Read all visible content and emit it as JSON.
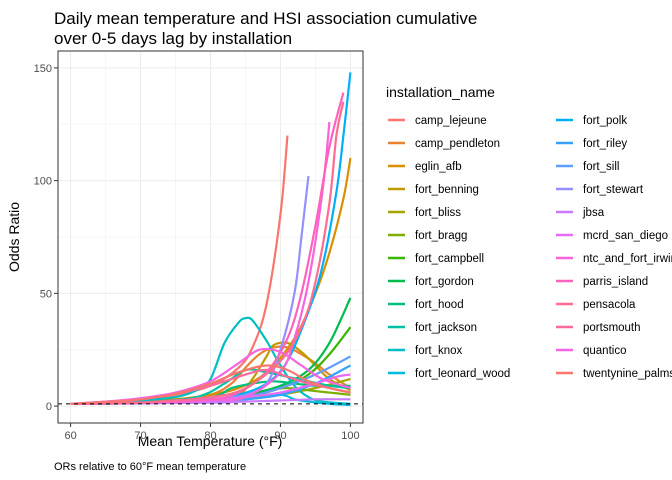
{
  "chart_data": {
    "type": "line",
    "title": "Daily mean temperature and HSI association cumulative",
    "subtitle": "over 0-5 days lag by installation",
    "xlabel": "Mean Temperature (°F)",
    "ylabel": "Odds Ratio",
    "caption": "ORs relative to 60°F mean temperature",
    "xlim": [
      58.2,
      101.8
    ],
    "ylim": [
      -7.5,
      157.5
    ],
    "x_ticks": [
      60,
      70,
      80,
      90,
      100
    ],
    "y_ticks": [
      0,
      50,
      100,
      150
    ],
    "reference_line": {
      "y": 1,
      "style": "dashed"
    },
    "grid": true,
    "legend_title": "installation_name",
    "legend_position": "right",
    "series": [
      {
        "name": "camp_lejeune",
        "color": "#F8766D",
        "points": [
          [
            60,
            1
          ],
          [
            65,
            1.6
          ],
          [
            70,
            2.8
          ],
          [
            75,
            5
          ],
          [
            80,
            9
          ],
          [
            84,
            17
          ],
          [
            86,
            26
          ],
          [
            88,
            45
          ],
          [
            90,
            85
          ],
          [
            91,
            120
          ]
        ]
      },
      {
        "name": "camp_pendleton",
        "color": "#EA8331",
        "points": [
          [
            60,
            1
          ],
          [
            65,
            1.3
          ],
          [
            70,
            1.8
          ],
          [
            75,
            2.8
          ],
          [
            80,
            5
          ],
          [
            83,
            10
          ],
          [
            85,
            17
          ],
          [
            87,
            23
          ],
          [
            89,
            26
          ],
          [
            91,
            26
          ],
          [
            93,
            23
          ],
          [
            95,
            19
          ],
          [
            97,
            14
          ],
          [
            100,
            8
          ]
        ]
      },
      {
        "name": "eglin_afb",
        "color": "#D89000",
        "points": [
          [
            60,
            1
          ],
          [
            65,
            1.4
          ],
          [
            70,
            2
          ],
          [
            75,
            3
          ],
          [
            80,
            5
          ],
          [
            84,
            8
          ],
          [
            88,
            15
          ],
          [
            92,
            30
          ],
          [
            95,
            50
          ],
          [
            97,
            68
          ],
          [
            99,
            92
          ],
          [
            100,
            110
          ]
        ]
      },
      {
        "name": "fort_benning",
        "color": "#C09B00",
        "points": [
          [
            60,
            1
          ],
          [
            70,
            1.5
          ],
          [
            80,
            3
          ],
          [
            84,
            5
          ],
          [
            86,
            12
          ],
          [
            88,
            22
          ],
          [
            89,
            27
          ],
          [
            91,
            28
          ],
          [
            93,
            24
          ],
          [
            95,
            18
          ],
          [
            97,
            12
          ],
          [
            100,
            7
          ]
        ]
      },
      {
        "name": "fort_bliss",
        "color": "#A3A500",
        "points": [
          [
            60,
            1
          ],
          [
            70,
            1.3
          ],
          [
            80,
            2
          ],
          [
            85,
            3
          ],
          [
            90,
            5
          ],
          [
            95,
            8
          ],
          [
            100,
            12
          ]
        ]
      },
      {
        "name": "fort_bragg",
        "color": "#7CAE00",
        "points": [
          [
            60,
            1
          ],
          [
            70,
            1.5
          ],
          [
            80,
            3
          ],
          [
            85,
            5
          ],
          [
            88,
            7
          ],
          [
            91,
            8
          ],
          [
            94,
            7
          ],
          [
            97,
            6
          ],
          [
            100,
            5
          ]
        ]
      },
      {
        "name": "fort_campbell",
        "color": "#39B600",
        "points": [
          [
            60,
            1
          ],
          [
            70,
            1.5
          ],
          [
            80,
            2.5
          ],
          [
            85,
            4
          ],
          [
            90,
            8
          ],
          [
            94,
            14
          ],
          [
            97,
            23
          ],
          [
            100,
            35
          ]
        ]
      },
      {
        "name": "fort_gordon",
        "color": "#00BB4E",
        "points": [
          [
            60,
            1
          ],
          [
            70,
            1.5
          ],
          [
            80,
            3
          ],
          [
            85,
            5
          ],
          [
            90,
            9
          ],
          [
            94,
            16
          ],
          [
            97,
            28
          ],
          [
            100,
            48
          ]
        ]
      },
      {
        "name": "fort_hood",
        "color": "#00BF7D",
        "points": [
          [
            60,
            1
          ],
          [
            70,
            1.6
          ],
          [
            80,
            4
          ],
          [
            83,
            8
          ],
          [
            86,
            10
          ],
          [
            89,
            11
          ],
          [
            92,
            10
          ],
          [
            95,
            9
          ],
          [
            98,
            9
          ],
          [
            100,
            9
          ]
        ]
      },
      {
        "name": "fort_jackson",
        "color": "#00C1A3",
        "points": [
          [
            60,
            1
          ],
          [
            70,
            1.5
          ],
          [
            78,
            4
          ],
          [
            82,
            10
          ],
          [
            85,
            16
          ],
          [
            88,
            15
          ],
          [
            91,
            13
          ],
          [
            94,
            11
          ],
          [
            97,
            9
          ],
          [
            100,
            8
          ]
        ]
      },
      {
        "name": "fort_knox",
        "color": "#00BFC4",
        "points": [
          [
            60,
            1
          ],
          [
            65,
            1.5
          ],
          [
            70,
            2.5
          ],
          [
            75,
            4
          ],
          [
            78,
            7
          ],
          [
            80,
            12
          ],
          [
            82,
            28
          ],
          [
            84,
            37
          ],
          [
            85,
            39
          ],
          [
            86,
            38
          ],
          [
            88,
            29
          ],
          [
            90,
            18
          ],
          [
            92,
            9
          ],
          [
            94,
            4
          ],
          [
            96,
            2
          ],
          [
            100,
            1
          ]
        ]
      },
      {
        "name": "fort_leonard_wood",
        "color": "#00BAE0",
        "points": [
          [
            60,
            1
          ],
          [
            70,
            1.4
          ],
          [
            80,
            2.5
          ],
          [
            85,
            4
          ],
          [
            90,
            5
          ],
          [
            92,
            3
          ],
          [
            94,
            2
          ],
          [
            97,
            1
          ],
          [
            100,
            0.5
          ]
        ]
      },
      {
        "name": "fort_polk",
        "color": "#00B0F6",
        "points": [
          [
            60,
            1
          ],
          [
            70,
            1.5
          ],
          [
            80,
            3
          ],
          [
            84,
            5
          ],
          [
            88,
            10
          ],
          [
            91,
            20
          ],
          [
            94,
            42
          ],
          [
            96,
            62
          ],
          [
            98,
            95
          ],
          [
            99,
            120
          ],
          [
            100,
            148
          ]
        ]
      },
      {
        "name": "fort_riley",
        "color": "#35A2FF",
        "points": [
          [
            60,
            1
          ],
          [
            70,
            1.3
          ],
          [
            80,
            2
          ],
          [
            85,
            3
          ],
          [
            90,
            5
          ],
          [
            95,
            10
          ],
          [
            100,
            18
          ]
        ]
      },
      {
        "name": "fort_sill",
        "color": "#619CFF",
        "points": [
          [
            60,
            1
          ],
          [
            70,
            1.4
          ],
          [
            80,
            2.5
          ],
          [
            85,
            4
          ],
          [
            90,
            8
          ],
          [
            95,
            14
          ],
          [
            100,
            22
          ]
        ]
      },
      {
        "name": "fort_stewart",
        "color": "#9590FF",
        "points": [
          [
            60,
            1
          ],
          [
            70,
            1.5
          ],
          [
            80,
            3
          ],
          [
            85,
            5
          ],
          [
            88,
            10
          ],
          [
            90,
            25
          ],
          [
            92,
            50
          ],
          [
            93,
            75
          ],
          [
            94,
            102
          ]
        ]
      },
      {
        "name": "jbsa",
        "color": "#C77CFF",
        "points": [
          [
            60,
            1
          ],
          [
            70,
            1.2
          ],
          [
            80,
            1.5
          ],
          [
            85,
            2
          ],
          [
            90,
            2.5
          ],
          [
            95,
            3
          ],
          [
            100,
            3
          ]
        ]
      },
      {
        "name": "mcrd_san_diego",
        "color": "#E76BF3",
        "points": [
          [
            60,
            1
          ],
          [
            70,
            1.4
          ],
          [
            80,
            2.5
          ],
          [
            85,
            4
          ],
          [
            90,
            6
          ],
          [
            95,
            10
          ],
          [
            98,
            13
          ],
          [
            100,
            14
          ]
        ]
      },
      {
        "name": "ntc_and_fort_irwin",
        "color": "#FA62DB",
        "points": [
          [
            60,
            1
          ],
          [
            70,
            1.5
          ],
          [
            80,
            2.5
          ],
          [
            85,
            4
          ],
          [
            90,
            15
          ],
          [
            92,
            30
          ],
          [
            94,
            55
          ],
          [
            96,
            95
          ],
          [
            97,
            126
          ]
        ]
      },
      {
        "name": "parris_island",
        "color": "#FF62BC",
        "points": [
          [
            60,
            1
          ],
          [
            70,
            1.5
          ],
          [
            80,
            3
          ],
          [
            84,
            6
          ],
          [
            88,
            15
          ],
          [
            91,
            30
          ],
          [
            93,
            50
          ],
          [
            95,
            80
          ],
          [
            97,
            115
          ],
          [
            99,
            139
          ]
        ]
      },
      {
        "name": "pensacola",
        "color": "#FF6C91",
        "points": [
          [
            60,
            1
          ],
          [
            70,
            1.6
          ],
          [
            80,
            4
          ],
          [
            85,
            8
          ],
          [
            90,
            20
          ],
          [
            93,
            35
          ],
          [
            95,
            55
          ],
          [
            97,
            90
          ],
          [
            98,
            120
          ],
          [
            99,
            135
          ]
        ]
      },
      {
        "name": "portsmouth",
        "color": "#FF699C",
        "points": [
          [
            60,
            1
          ],
          [
            65,
            2
          ],
          [
            70,
            3
          ],
          [
            75,
            5.5
          ],
          [
            80,
            9
          ],
          [
            85,
            14
          ],
          [
            88,
            16
          ],
          [
            91,
            13
          ],
          [
            94,
            10
          ],
          [
            97,
            8
          ],
          [
            100,
            6
          ]
        ]
      },
      {
        "name": "quantico",
        "color": "#F564E3",
        "points": [
          [
            60,
            1
          ],
          [
            65,
            2
          ],
          [
            70,
            3.5
          ],
          [
            75,
            6
          ],
          [
            80,
            11
          ],
          [
            84,
            19
          ],
          [
            87,
            25
          ],
          [
            90,
            24
          ],
          [
            93,
            18
          ],
          [
            96,
            12
          ],
          [
            100,
            8
          ]
        ]
      },
      {
        "name": "twentynine_palms",
        "color": "#F8766D",
        "points": [
          [
            60,
            1
          ],
          [
            65,
            1.8
          ],
          [
            70,
            3
          ],
          [
            75,
            5.5
          ],
          [
            80,
            10
          ],
          [
            84,
            15
          ],
          [
            88,
            18
          ],
          [
            91,
            16
          ],
          [
            94,
            11
          ],
          [
            97,
            8
          ],
          [
            100,
            6
          ]
        ]
      }
    ]
  }
}
